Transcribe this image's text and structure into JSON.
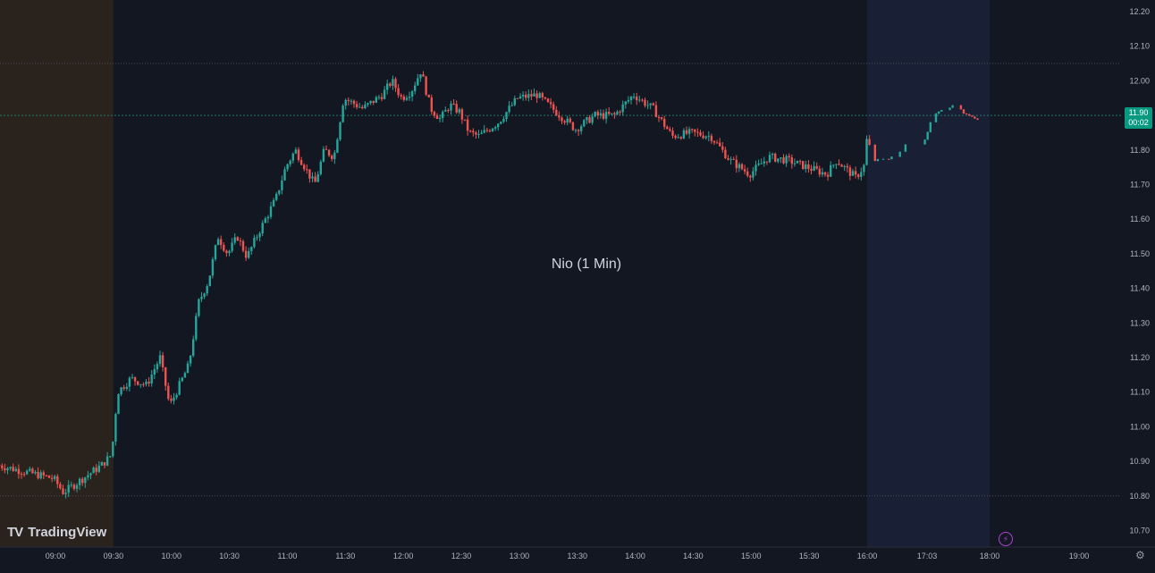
{
  "chart_data": {
    "type": "candlestick",
    "title": "Nio (1 Min)",
    "xlabel": "",
    "ylabel": "",
    "ylim": [
      10.65,
      12.23
    ],
    "y_ticks": [
      "12.20",
      "12.10",
      "12.00",
      "11.90",
      "11.80",
      "11.70",
      "11.60",
      "11.50",
      "11.40",
      "11.30",
      "11.20",
      "11.10",
      "11.00",
      "10.90",
      "10.80",
      "10.70"
    ],
    "x_ticks": [
      "09:00",
      "09:30",
      "10:00",
      "10:30",
      "11:00",
      "11:30",
      "12:00",
      "12:30",
      "13:00",
      "13:30",
      "14:00",
      "14:30",
      "15:00",
      "15:30",
      "16:00",
      "17:03",
      "18:00",
      "19:00"
    ],
    "current_price": "11.90",
    "countdown": "00:02",
    "reference_lines": [
      12.05,
      11.9,
      10.8
    ],
    "sessions": [
      {
        "name": "pre-market",
        "from": "08:30",
        "to": "09:30",
        "color": "#2a221c"
      },
      {
        "name": "after-hours",
        "from": "16:00",
        "to": "18:00",
        "color": "#192036"
      }
    ],
    "series_path": [
      [
        "08:30",
        10.89
      ],
      [
        "08:45",
        10.87
      ],
      [
        "09:00",
        10.85
      ],
      [
        "09:05",
        10.81
      ],
      [
        "09:15",
        10.85
      ],
      [
        "09:25",
        10.89
      ],
      [
        "09:30",
        10.92
      ],
      [
        "09:33",
        11.1
      ],
      [
        "09:40",
        11.14
      ],
      [
        "09:48",
        11.12
      ],
      [
        "09:55",
        11.2
      ],
      [
        "10:00",
        11.06
      ],
      [
        "10:05",
        11.12
      ],
      [
        "10:10",
        11.18
      ],
      [
        "10:15",
        11.36
      ],
      [
        "10:20",
        11.42
      ],
      [
        "10:25",
        11.55
      ],
      [
        "10:30",
        11.5
      ],
      [
        "10:35",
        11.55
      ],
      [
        "10:40",
        11.49
      ],
      [
        "10:45",
        11.55
      ],
      [
        "10:55",
        11.66
      ],
      [
        "11:00",
        11.75
      ],
      [
        "11:05",
        11.8
      ],
      [
        "11:10",
        11.75
      ],
      [
        "11:15",
        11.7
      ],
      [
        "11:20",
        11.8
      ],
      [
        "11:25",
        11.78
      ],
      [
        "11:30",
        11.95
      ],
      [
        "11:40",
        11.92
      ],
      [
        "11:50",
        11.96
      ],
      [
        "11:55",
        12.0
      ],
      [
        "12:00",
        11.95
      ],
      [
        "12:05",
        11.97
      ],
      [
        "12:10",
        12.03
      ],
      [
        "12:15",
        11.92
      ],
      [
        "12:20",
        11.89
      ],
      [
        "12:25",
        11.93
      ],
      [
        "12:30",
        11.91
      ],
      [
        "12:35",
        11.85
      ],
      [
        "12:40",
        11.84
      ],
      [
        "12:50",
        11.88
      ],
      [
        "13:00",
        11.95
      ],
      [
        "13:10",
        11.96
      ],
      [
        "13:20",
        11.91
      ],
      [
        "13:30",
        11.86
      ],
      [
        "13:40",
        11.9
      ],
      [
        "13:50",
        11.9
      ],
      [
        "14:00",
        11.96
      ],
      [
        "14:10",
        11.92
      ],
      [
        "14:20",
        11.84
      ],
      [
        "14:30",
        11.85
      ],
      [
        "14:40",
        11.84
      ],
      [
        "14:50",
        11.77
      ],
      [
        "15:00",
        11.73
      ],
      [
        "15:10",
        11.78
      ],
      [
        "15:20",
        11.77
      ],
      [
        "15:30",
        11.75
      ],
      [
        "15:40",
        11.73
      ],
      [
        "15:45",
        11.77
      ],
      [
        "15:55",
        11.72
      ],
      [
        "16:00",
        11.76
      ],
      [
        "16:01",
        11.83
      ],
      [
        "16:10",
        11.77
      ],
      [
        "16:30",
        11.78
      ],
      [
        "16:45",
        11.82
      ],
      [
        "17:03",
        11.83
      ],
      [
        "17:10",
        11.9
      ],
      [
        "17:20",
        11.92
      ],
      [
        "17:30",
        11.93
      ],
      [
        "17:40",
        11.9
      ],
      [
        "17:50",
        11.89
      ]
    ]
  },
  "brand": {
    "name": "TradingView",
    "mark": "TV"
  },
  "icons": {
    "bolt": "lightning-icon",
    "settings": "gear-icon"
  },
  "colors": {
    "up": "#26a69a",
    "down": "#ef5350",
    "background": "#131722",
    "axis_text": "#b2b5be",
    "current_price_badge": "#089981",
    "title_text": "#d1d4dc"
  }
}
